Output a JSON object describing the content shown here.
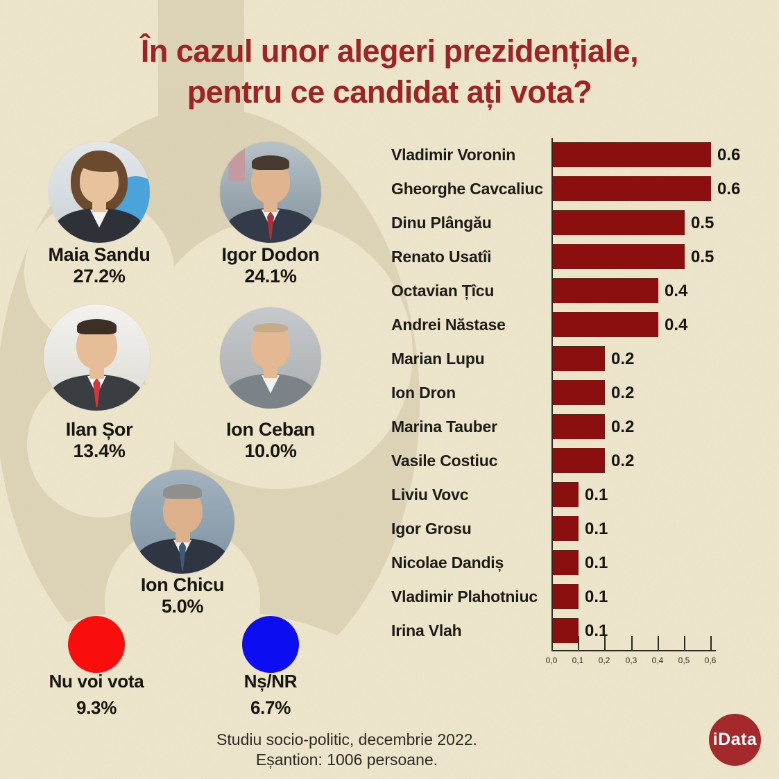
{
  "title": {
    "line1": "În cazul unor alegeri prezidențiale,",
    "line2": "pentru ce candidat ați vota?",
    "color": "#9e2323"
  },
  "candidates": [
    {
      "name": "Maia Sandu",
      "pct": "27.2%",
      "photo": {
        "bg1": "#e3e7ea",
        "bg2": "#c9d1d6",
        "skin": "#e8c29c",
        "hair": "#6b4a2e",
        "suit": "#2e3138",
        "shirt": "#f4f4f2",
        "tie": "",
        "hair_style": "long",
        "accent": {
          "x": "60%",
          "y": "34%",
          "w": "52%",
          "h": "56%",
          "color": "#4aa3d9",
          "round": "50%"
        }
      }
    },
    {
      "name": "Igor Dodon",
      "pct": "24.1%",
      "photo": {
        "bg1": "#b7c2c8",
        "bg2": "#83919b",
        "skin": "#dfb48e",
        "hair": "#473a30",
        "suit": "#333b4b",
        "shirt": "#f5f5f3",
        "tie": "#a8333b",
        "hair_style": "short",
        "accent": {
          "x": "8%",
          "y": "5%",
          "w": "17%",
          "h": "34%",
          "color": "#c49aa0",
          "round": "3px"
        }
      }
    },
    {
      "name": "Ilan Șor",
      "pct": "13.4%",
      "photo": {
        "bg1": "#f3f2ef",
        "bg2": "#dddbd5",
        "skin": "#e6bd96",
        "hair": "#3c3026",
        "suit": "#3a3d42",
        "shirt": "#ffffff",
        "tie": "#d8343c",
        "hair_style": "short",
        "accent": null
      }
    },
    {
      "name": "Ion Ceban",
      "pct": "10.0%",
      "photo": {
        "bg1": "#c6c9cb",
        "bg2": "#aaadaf",
        "skin": "#e3b892",
        "hair": "#c3a985",
        "suit": "#7c8388",
        "shirt": "#f1f1ef",
        "tie": "",
        "hair_style": "buzz",
        "accent": null
      }
    },
    {
      "name": "Ion Chicu",
      "pct": "5.0%",
      "photo": {
        "bg1": "#a3b2be",
        "bg2": "#7e92a2",
        "skin": "#dcb08b",
        "hair": "#8f8f8d",
        "suit": "#2f3642",
        "shirt": "#f4f4f2",
        "tie": "#3d5a7a",
        "hair_style": "short",
        "accent": null
      }
    }
  ],
  "other_options": [
    {
      "label": "Nu voi vota",
      "pct": "9.3%",
      "color": "#fa0d0d"
    },
    {
      "label": "Nș/NR",
      "pct": "6.7%",
      "color": "#0d0df2"
    }
  ],
  "chart_data": {
    "type": "bar",
    "orientation": "horizontal",
    "categories": [
      "Vladimir Voronin",
      "Gheorghe Cavcaliuc",
      "Dinu Plângău",
      "Renato Usatîi",
      "Octavian Țîcu",
      "Andrei Năstase",
      "Marian Lupu",
      "Ion Dron",
      "Marina Tauber",
      "Vasile Costiuc",
      "Liviu Vovc",
      "Igor Grosu",
      "Nicolae Dandiș",
      "Vladimir Plahotniuc",
      "Irina Vlah"
    ],
    "values": [
      0.6,
      0.6,
      0.5,
      0.5,
      0.4,
      0.4,
      0.2,
      0.2,
      0.2,
      0.2,
      0.1,
      0.1,
      0.1,
      0.1,
      0.1
    ],
    "value_labels": [
      "0.6",
      "0.6",
      "0.5",
      "0.5",
      "0.4",
      "0.4",
      "0.2",
      "0.2",
      "0.2",
      "0.2",
      "0.1",
      "0.1",
      "0.1",
      "0.1",
      "0.1"
    ],
    "xlim": [
      0,
      0.6
    ],
    "x_ticks": [
      "0,0",
      "0,1",
      "0,2",
      "0,3",
      "0,4",
      "0,5",
      "0,6"
    ],
    "bar_color": "#8c0f10",
    "grid": false,
    "legend": false,
    "title": "",
    "xlabel": "",
    "ylabel": ""
  },
  "footer": {
    "line1": "Studiu socio-politic, decembrie 2022.",
    "line2": "Eșantion: 1006 persoane."
  },
  "logo": {
    "text": "iData",
    "bg": "#a5292b",
    "fg": "#ffffff"
  },
  "colors": {
    "background": "#eee6cc",
    "watermark": "#d8ceb0",
    "text": "#16150f"
  }
}
